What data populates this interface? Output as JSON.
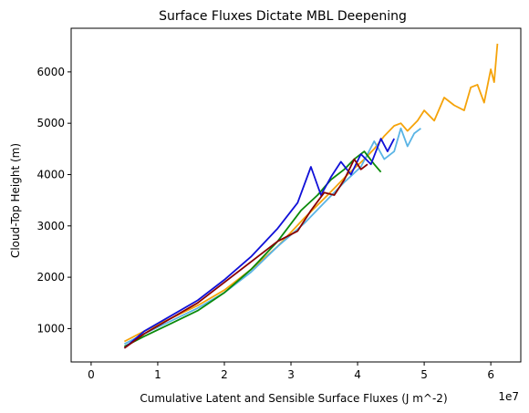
{
  "chart_data": {
    "type": "line",
    "title": "Surface Fluxes Dictate MBL Deepening",
    "xlabel": "Cumulative Latent and Sensible Surface Fluxes (J m^-2)",
    "ylabel": "Cloud-Top Height (m)",
    "x_offset_label": "1e7",
    "xlim": [
      -0.3,
      6.45
    ],
    "ylim": [
      350,
      6850
    ],
    "x_scale_factor": 10000000,
    "xticks": [
      0,
      1,
      2,
      3,
      4,
      5,
      6
    ],
    "xtick_labels": [
      "0",
      "1",
      "2",
      "3",
      "4",
      "5",
      "6"
    ],
    "yticks": [
      1000,
      2000,
      3000,
      4000,
      5000,
      6000
    ],
    "ytick_labels": [
      "1000",
      "2000",
      "3000",
      "4000",
      "5000",
      "6000"
    ],
    "grid": false,
    "legend": "none",
    "series": [
      {
        "color": "#f5a30a",
        "x": [
          0.5,
          0.8,
          1.2,
          1.6,
          2.0,
          2.4,
          2.8,
          3.2,
          3.55,
          3.85,
          4.1,
          4.25,
          4.4,
          4.55,
          4.65,
          4.75,
          4.9,
          5.0,
          5.15,
          5.3,
          5.45,
          5.6,
          5.7,
          5.8,
          5.9,
          6.0,
          6.05,
          6.1
        ],
        "y": [
          750,
          950,
          1200,
          1450,
          1750,
          2150,
          2600,
          3150,
          3600,
          4000,
          4300,
          4500,
          4750,
          4950,
          5000,
          4850,
          5050,
          5250,
          5050,
          5500,
          5350,
          5250,
          5700,
          5750,
          5400,
          6050,
          5800,
          6550
        ]
      },
      {
        "color": "#5ab4e5",
        "x": [
          0.5,
          0.8,
          1.2,
          1.6,
          2.0,
          2.4,
          2.8,
          3.2,
          3.5,
          3.8,
          4.05,
          4.25,
          4.4,
          4.55,
          4.65,
          4.75,
          4.85,
          4.95
        ],
        "y": [
          700,
          900,
          1150,
          1400,
          1700,
          2100,
          2600,
          3050,
          3450,
          3850,
          4150,
          4650,
          4300,
          4450,
          4900,
          4550,
          4800,
          4900
        ]
      },
      {
        "color": "#0a8a0a",
        "x": [
          0.5,
          0.8,
          1.2,
          1.6,
          2.0,
          2.4,
          2.8,
          3.15,
          3.4,
          3.6,
          3.8,
          3.95,
          4.1,
          4.25,
          4.35
        ],
        "y": [
          650,
          850,
          1100,
          1350,
          1700,
          2150,
          2700,
          3300,
          3600,
          3900,
          4100,
          4300,
          4450,
          4200,
          4050
        ]
      },
      {
        "color": "#1010d8",
        "x": [
          0.5,
          0.8,
          1.2,
          1.6,
          2.0,
          2.4,
          2.8,
          3.1,
          3.3,
          3.45,
          3.6,
          3.75,
          3.9,
          4.05,
          4.2,
          4.35,
          4.45,
          4.55
        ],
        "y": [
          620,
          950,
          1250,
          1550,
          1950,
          2400,
          2950,
          3450,
          4150,
          3600,
          3950,
          4250,
          4000,
          4400,
          4200,
          4700,
          4450,
          4700
        ]
      },
      {
        "color": "#880000",
        "x": [
          0.5,
          0.8,
          1.2,
          1.6,
          2.0,
          2.4,
          2.8,
          3.1,
          3.3,
          3.5,
          3.65,
          3.8,
          3.95,
          4.05,
          4.15
        ],
        "y": [
          620,
          900,
          1200,
          1500,
          1900,
          2300,
          2700,
          2900,
          3300,
          3650,
          3600,
          3900,
          4300,
          4100,
          4200
        ]
      }
    ]
  }
}
